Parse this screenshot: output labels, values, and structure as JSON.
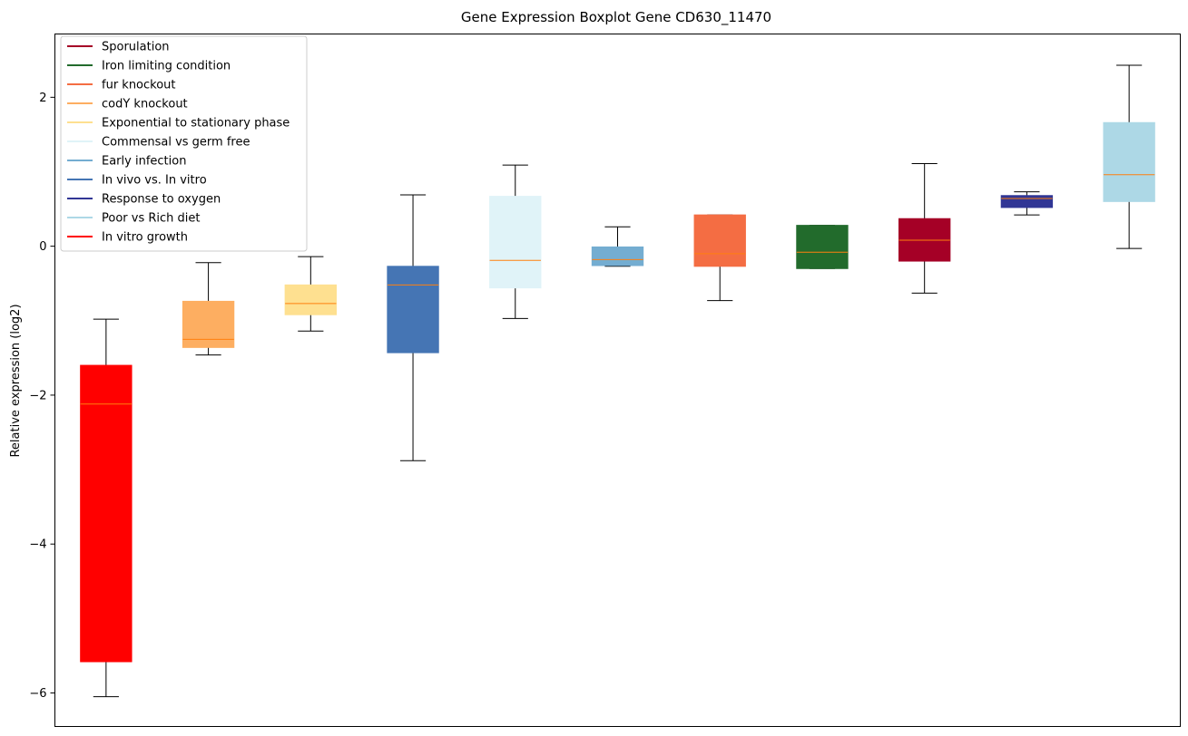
{
  "chart_data": {
    "type": "boxplot",
    "title": "Gene Expression Boxplot Gene CD630_11470",
    "xlabel": "",
    "ylabel": "Relative expression (log2)",
    "ylim": [
      -6.45,
      2.85
    ],
    "yticks": [
      -6,
      -4,
      -2,
      0,
      2
    ],
    "ytick_labels": [
      "−6",
      "−4",
      "−2",
      "0",
      "2"
    ],
    "legend_position": "upper-left",
    "legend": [
      {
        "label": "Sporulation",
        "color": "#a50026"
      },
      {
        "label": "Iron limiting condition",
        "color": "#226b2c"
      },
      {
        "label": "fur knockout",
        "color": "#f46d43"
      },
      {
        "label": "codY knockout",
        "color": "#fdae61"
      },
      {
        "label": "Exponential to stationary phase",
        "color": "#fee090"
      },
      {
        "label": "Commensal vs germ free",
        "color": "#e0f3f8"
      },
      {
        "label": "Early infection",
        "color": "#74add1"
      },
      {
        "label": "In vivo vs. In vitro",
        "color": "#4575b4"
      },
      {
        "label": "Response to oxygen",
        "color": "#313695"
      },
      {
        "label": "Poor vs Rich diet",
        "color": "#add8e6"
      },
      {
        "label": "In vitro growth",
        "color": "#ff0000"
      }
    ],
    "median_color": "#ff7f0e",
    "boxes": [
      {
        "group": "In vitro growth",
        "color": "#ff0000",
        "whislo": -6.05,
        "q1": -5.58,
        "med": -2.12,
        "q3": -1.6,
        "whishi": -0.98
      },
      {
        "group": "codY knockout",
        "color": "#fdae61",
        "whislo": -1.46,
        "q1": -1.36,
        "med": -1.25,
        "q3": -0.74,
        "whishi": -0.22
      },
      {
        "group": "Exponential to stationary phase",
        "color": "#fee090",
        "whislo": -1.14,
        "q1": -0.92,
        "med": -0.77,
        "q3": -0.52,
        "whishi": -0.14
      },
      {
        "group": "In vivo vs. In vitro",
        "color": "#4575b4",
        "whislo": -2.88,
        "q1": -1.43,
        "med": -0.52,
        "q3": -0.27,
        "whishi": 0.69
      },
      {
        "group": "Commensal vs germ free",
        "color": "#e0f3f8",
        "whislo": -0.97,
        "q1": -0.56,
        "med": -0.19,
        "q3": 0.67,
        "whishi": 1.09
      },
      {
        "group": "Early infection",
        "color": "#74add1",
        "whislo": -0.27,
        "q1": -0.26,
        "med": -0.18,
        "q3": -0.01,
        "whishi": 0.26
      },
      {
        "group": "fur knockout",
        "color": "#f46d43",
        "whislo": -0.73,
        "q1": -0.27,
        "med": -0.1,
        "q3": 0.42,
        "whishi": 0.42
      },
      {
        "group": "Iron limiting condition",
        "color": "#226b2c",
        "whislo": -0.3,
        "q1": -0.3,
        "med": -0.08,
        "q3": 0.28,
        "whishi": 0.28
      },
      {
        "group": "Sporulation",
        "color": "#a50026",
        "whislo": -0.63,
        "q1": -0.2,
        "med": 0.08,
        "q3": 0.37,
        "whishi": 1.11
      },
      {
        "group": "Response to oxygen",
        "color": "#313695",
        "whislo": 0.42,
        "q1": 0.52,
        "med": 0.64,
        "q3": 0.68,
        "whishi": 0.73
      },
      {
        "group": "Poor vs Rich diet",
        "color": "#add8e6",
        "whislo": -0.03,
        "q1": 0.6,
        "med": 0.96,
        "q3": 1.66,
        "whishi": 2.43
      }
    ]
  }
}
